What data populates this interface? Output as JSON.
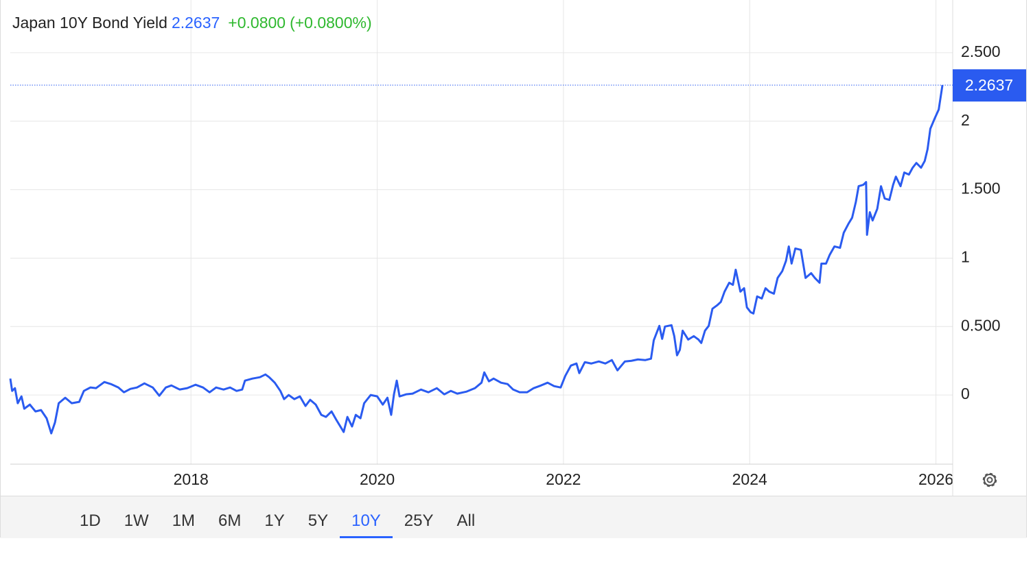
{
  "chart_data": {
    "type": "line",
    "title": "Japan 10Y Bond Yield",
    "change": "+0.0800",
    "change_percent": "(+0.0800%)",
    "range_buttons": [
      "1D",
      "1W",
      "1M",
      "6M",
      "1Y",
      "5Y",
      "10Y",
      "25Y",
      "All"
    ],
    "active_range": "10Y",
    "grid": true,
    "xlim": [
      2016.06,
      2026.18
    ],
    "xticks": [
      2018,
      2020,
      2022,
      2024,
      2026
    ],
    "ylim": [
      -0.5,
      2.85
    ],
    "yticks": [
      0,
      {
        "value": 0.5,
        "label": "0.500"
      },
      1,
      {
        "value": 1.5,
        "label": "1.500"
      },
      2,
      {
        "value": 2.5,
        "label": "2.500"
      }
    ],
    "x": [
      2016.06,
      2016.08,
      2016.11,
      2016.14,
      2016.18,
      2016.21,
      2016.27,
      2016.33,
      2016.39,
      2016.45,
      2016.5,
      2016.54,
      2016.58,
      2016.65,
      2016.72,
      2016.8,
      2016.85,
      2016.92,
      2016.98,
      2017.07,
      2017.14,
      2017.22,
      2017.28,
      2017.35,
      2017.42,
      2017.5,
      2017.59,
      2017.66,
      2017.73,
      2017.79,
      2017.88,
      2017.96,
      2018.05,
      2018.13,
      2018.2,
      2018.27,
      2018.35,
      2018.42,
      2018.49,
      2018.55,
      2018.58,
      2018.66,
      2018.74,
      2018.8,
      2018.84,
      2018.9,
      2018.96,
      2019.0,
      2019.05,
      2019.11,
      2019.17,
      2019.23,
      2019.28,
      2019.34,
      2019.4,
      2019.45,
      2019.51,
      2019.56,
      2019.64,
      2019.68,
      2019.73,
      2019.77,
      2019.82,
      2019.86,
      2019.93,
      2020.0,
      2020.06,
      2020.11,
      2020.15,
      2020.18,
      2020.21,
      2020.24,
      2020.31,
      2020.38,
      2020.47,
      2020.55,
      2020.64,
      2020.72,
      2020.79,
      2020.86,
      2020.96,
      2021.05,
      2021.12,
      2021.15,
      2021.2,
      2021.25,
      2021.33,
      2021.4,
      2021.46,
      2021.53,
      2021.61,
      2021.68,
      2021.76,
      2021.83,
      2021.9,
      2021.97,
      2022.02,
      2022.08,
      2022.14,
      2022.17,
      2022.23,
      2022.3,
      2022.38,
      2022.45,
      2022.52,
      2022.58,
      2022.66,
      2022.73,
      2022.8,
      2022.88,
      2022.94,
      2022.97,
      2023.03,
      2023.06,
      2023.09,
      2023.16,
      2023.19,
      2023.22,
      2023.25,
      2023.28,
      2023.34,
      2023.4,
      2023.45,
      2023.48,
      2023.52,
      2023.56,
      2023.6,
      2023.65,
      2023.69,
      2023.73,
      2023.78,
      2023.82,
      2023.85,
      2023.9,
      2023.94,
      2023.97,
      2024.01,
      2024.04,
      2024.08,
      2024.13,
      2024.17,
      2024.21,
      2024.26,
      2024.3,
      2024.35,
      2024.39,
      2024.42,
      2024.45,
      2024.49,
      2024.55,
      2024.6,
      2024.66,
      2024.7,
      2024.75,
      2024.77,
      2024.82,
      2024.86,
      2024.91,
      2024.97,
      2025.01,
      2025.06,
      2025.1,
      2025.14,
      2025.17,
      2025.22,
      2025.25,
      2025.26,
      2025.29,
      2025.32,
      2025.37,
      2025.41,
      2025.45,
      2025.5,
      2025.54,
      2025.57,
      2025.62,
      2025.66,
      2025.71,
      2025.75,
      2025.79,
      2025.84,
      2025.88,
      2025.91,
      2025.94,
      2025.99,
      2026.03,
      2026.07
    ],
    "series": [
      {
        "name": "Japan 10Y Bond Yield",
        "color": "#2a5bf0",
        "values": [
          0.12,
          0.03,
          0.05,
          -0.06,
          -0.01,
          -0.1,
          -0.07,
          -0.12,
          -0.11,
          -0.17,
          -0.28,
          -0.2,
          -0.06,
          -0.02,
          -0.06,
          -0.05,
          0.03,
          0.055,
          0.05,
          0.095,
          0.08,
          0.055,
          0.02,
          0.045,
          0.055,
          0.085,
          0.055,
          -0.005,
          0.055,
          0.07,
          0.04,
          0.05,
          0.075,
          0.055,
          0.02,
          0.055,
          0.04,
          0.055,
          0.03,
          0.04,
          0.105,
          0.12,
          0.13,
          0.15,
          0.13,
          0.09,
          0.03,
          -0.03,
          0.0,
          -0.03,
          -0.01,
          -0.08,
          -0.035,
          -0.07,
          -0.145,
          -0.16,
          -0.12,
          -0.18,
          -0.27,
          -0.16,
          -0.23,
          -0.145,
          -0.17,
          -0.06,
          0.0,
          -0.01,
          -0.07,
          -0.02,
          -0.145,
          0.005,
          0.105,
          -0.01,
          0.005,
          0.01,
          0.04,
          0.02,
          0.05,
          0.005,
          0.03,
          0.01,
          0.025,
          0.05,
          0.09,
          0.165,
          0.1,
          0.12,
          0.09,
          0.08,
          0.04,
          0.02,
          0.02,
          0.05,
          0.07,
          0.09,
          0.065,
          0.055,
          0.14,
          0.215,
          0.23,
          0.16,
          0.24,
          0.23,
          0.245,
          0.23,
          0.255,
          0.18,
          0.245,
          0.25,
          0.26,
          0.255,
          0.265,
          0.4,
          0.505,
          0.41,
          0.5,
          0.51,
          0.43,
          0.29,
          0.33,
          0.47,
          0.405,
          0.43,
          0.405,
          0.38,
          0.47,
          0.505,
          0.63,
          0.655,
          0.68,
          0.755,
          0.82,
          0.805,
          0.915,
          0.755,
          0.78,
          0.64,
          0.605,
          0.595,
          0.72,
          0.705,
          0.78,
          0.755,
          0.74,
          0.855,
          0.905,
          0.98,
          1.085,
          0.96,
          1.07,
          1.06,
          0.855,
          0.89,
          0.855,
          0.82,
          0.96,
          0.96,
          1.025,
          1.085,
          1.075,
          1.185,
          1.25,
          1.295,
          1.41,
          1.525,
          1.535,
          1.555,
          1.17,
          1.335,
          1.275,
          1.36,
          1.525,
          1.435,
          1.425,
          1.535,
          1.595,
          1.525,
          1.625,
          1.61,
          1.66,
          1.695,
          1.66,
          1.71,
          1.795,
          1.945,
          2.025,
          2.085,
          2.2637
        ]
      }
    ]
  }
}
